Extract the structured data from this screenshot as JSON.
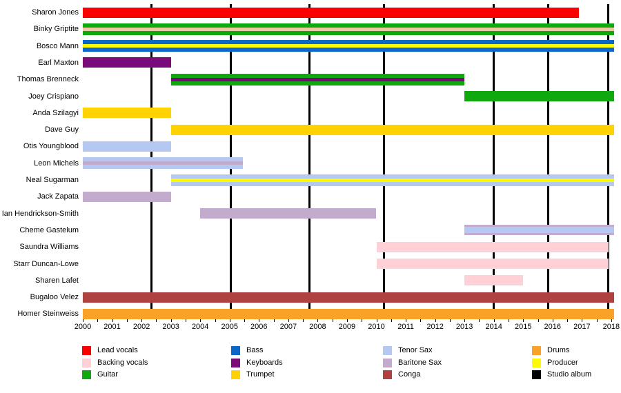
{
  "chart_data": {
    "type": "bar",
    "subtype": "gantt-membership-timeline",
    "title": "",
    "x_axis": {
      "min": 2000,
      "max": 2018,
      "bars_extend_to": 2018.1,
      "year_labels": [
        2000,
        2001,
        2002,
        2003,
        2004,
        2005,
        2006,
        2007,
        2008,
        2009,
        2010,
        2011,
        2012,
        2013,
        2014,
        2015,
        2016,
        2017,
        2018
      ],
      "minor_tick_interval": 0.5,
      "grid": "off"
    },
    "colors": {
      "lead_vocals": "#FA0000",
      "backing_vocals": "#FFD0D6",
      "guitar": "#0FA80F",
      "bass": "#0C68C8",
      "keyboards": "#7A0A7A",
      "trumpet": "#FFD303",
      "tenor_sax": "#B5C8F2",
      "baritone_sax": "#C3ABCE",
      "conga": "#B04141",
      "drums": "#F9A227",
      "producer": "#FBFB08",
      "studio_album": "#000000"
    },
    "members": [
      {
        "name": "Sharon Jones",
        "roles": [
          "Lead vocals"
        ],
        "from": 2000,
        "to": 2016.9,
        "color": "lead_vocals"
      },
      {
        "name": "Binky Griptite",
        "roles": [
          "Guitar",
          "Backing vocals"
        ],
        "from": 2000,
        "to": 2018.1,
        "color": "guitar",
        "stripe": "backing_vocals",
        "stripe_hex": "#EBCBA6"
      },
      {
        "name": "Bosco Mann",
        "roles": [
          "Bass",
          "Producer"
        ],
        "from": 2000,
        "to": 2018.1,
        "color": "bass",
        "stripe": "producer"
      },
      {
        "name": "Earl Maxton",
        "roles": [
          "Keyboards"
        ],
        "from": 2000,
        "to": 2003,
        "color": "keyboards"
      },
      {
        "name": "Thomas Brenneck",
        "roles": [
          "Guitar",
          "Keyboards"
        ],
        "from": 2003,
        "to": 2013,
        "color": "guitar",
        "stripe": "keyboards"
      },
      {
        "name": "Joey Crispiano",
        "roles": [
          "Guitar"
        ],
        "from": 2013,
        "to": 2018.1,
        "color": "guitar"
      },
      {
        "name": "Anda Szilagyi",
        "roles": [
          "Trumpet"
        ],
        "from": 2000,
        "to": 2003,
        "color": "trumpet"
      },
      {
        "name": "Dave Guy",
        "roles": [
          "Trumpet"
        ],
        "from": 2003,
        "to": 2018.1,
        "color": "trumpet"
      },
      {
        "name": "Otis Youngblood",
        "roles": [
          "Tenor Sax"
        ],
        "from": 2000,
        "to": 2003,
        "color": "tenor_sax"
      },
      {
        "name": "Leon Michels",
        "roles": [
          "Tenor Sax",
          "Baritone Sax"
        ],
        "from": 2000,
        "to": 2005.45,
        "color": "tenor_sax",
        "stripe": "baritone_sax"
      },
      {
        "name": "Neal Sugarman",
        "roles": [
          "Tenor Sax",
          "Producer"
        ],
        "from": 2003,
        "to": 2018.1,
        "color": "tenor_sax",
        "stripe": "producer"
      },
      {
        "name": "Jack Zapata",
        "roles": [
          "Baritone Sax"
        ],
        "from": 2000,
        "to": 2003,
        "color": "baritone_sax"
      },
      {
        "name": "Ian Hendrickson-Smith",
        "roles": [
          "Baritone Sax"
        ],
        "from": 2004,
        "to": 2010,
        "color": "baritone_sax"
      },
      {
        "name": "Cheme Gastelum",
        "roles": [
          "Baritone Sax",
          "Tenor Sax"
        ],
        "from": 2013,
        "to": 2018.1,
        "color": "baritone_sax",
        "stripe": "tenor_sax",
        "stripe_style": "thick"
      },
      {
        "name": "Saundra Williams",
        "roles": [
          "Backing vocals"
        ],
        "from": 2010,
        "to": 2017.9,
        "color": "backing_vocals"
      },
      {
        "name": "Starr Duncan-Lowe",
        "roles": [
          "Backing vocals"
        ],
        "from": 2010,
        "to": 2017.9,
        "color": "backing_vocals"
      },
      {
        "name": "Sharen Lafet",
        "roles": [
          "Backing vocals"
        ],
        "from": 2013,
        "to": 2015,
        "color": "backing_vocals"
      },
      {
        "name": "Bugaloo Velez",
        "roles": [
          "Conga"
        ],
        "from": 2000,
        "to": 2018.1,
        "color": "conga"
      },
      {
        "name": "Homer Steinweiss",
        "roles": [
          "Drums"
        ],
        "from": 2000,
        "to": 2018.1,
        "color": "drums"
      }
    ],
    "album_lines": {
      "label": "Studio album",
      "color": "studio_album",
      "years": [
        2002.35,
        2005.05,
        2007.72,
        2010.25,
        2014.0,
        2015.85,
        2017.9
      ]
    },
    "legend": {
      "position": "bottom",
      "columns": [
        [
          {
            "label": "Lead vocals",
            "color": "lead_vocals"
          },
          {
            "label": "Backing vocals",
            "color": "backing_vocals"
          },
          {
            "label": "Guitar",
            "color": "guitar"
          }
        ],
        [
          {
            "label": "Bass",
            "color": "bass"
          },
          {
            "label": "Keyboards",
            "color": "keyboards"
          },
          {
            "label": "Trumpet",
            "color": "trumpet"
          }
        ],
        [
          {
            "label": "Tenor Sax",
            "color": "tenor_sax"
          },
          {
            "label": "Baritone Sax",
            "color": "baritone_sax"
          },
          {
            "label": "Conga",
            "color": "conga"
          }
        ],
        [
          {
            "label": "Drums",
            "color": "drums"
          },
          {
            "label": "Producer",
            "color": "producer"
          },
          {
            "label": "Studio album",
            "color": "studio_album"
          }
        ]
      ]
    }
  }
}
